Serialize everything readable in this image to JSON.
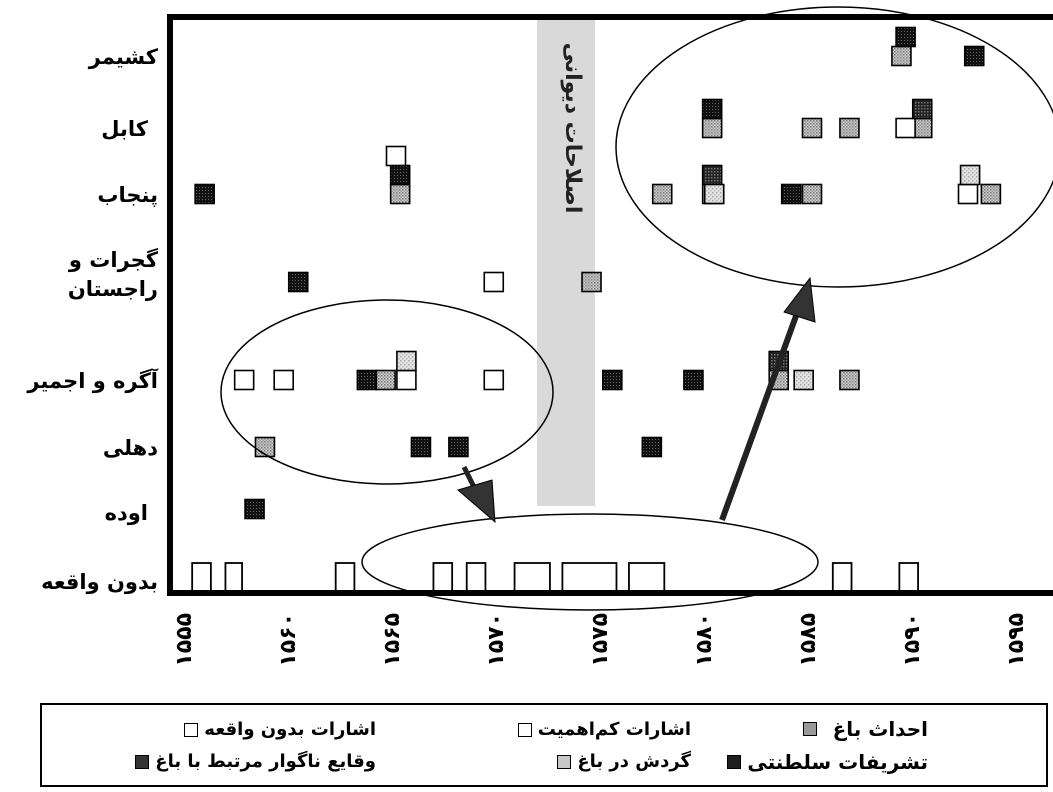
{
  "chart_data": {
    "type": "scatter",
    "categories": [
      "کشیمر",
      "کابل",
      "پنجاب",
      "گجرات و راجستان",
      "آگره و اجمیر",
      "دهلی",
      "اوده",
      "بدون واقعه"
    ],
    "category_lines": [
      [
        "کشیمر"
      ],
      [
        "کابل"
      ],
      [
        "پنجاب"
      ],
      [
        "گجرات و",
        "راجستان"
      ],
      [
        "آگره و اجمیر"
      ],
      [
        "دهلی"
      ],
      [
        "اوده"
      ],
      [
        "بدون واقعه"
      ]
    ],
    "x_ticks": [
      "۱۵۵۵",
      "۱۵۶۰",
      "۱۵۶۵",
      "۱۵۷۰",
      "۱۵۷۵",
      "۱۵۸۰",
      "۱۵۸۵",
      "۱۵۹۰",
      "۱۵۹۵"
    ],
    "xlim": [
      1555,
      1595
    ],
    "annotation": "اصلاحات دیوانی",
    "annotation_range": [
      1572,
      1574.3
    ],
    "colors": {
      "no_event": "#ffffff",
      "minor": "#ffffff",
      "garden_building": "#aaaaaa",
      "garden_walk": "#c8c8c8",
      "unpleasant": "#3a3a3a",
      "ceremonies": "#1e1e1e",
      "band": "#d9d9d9"
    },
    "series": [
      {
        "name": "احداث باغ",
        "key": "garden_building",
        "points": [
          {
            "x": 1565.2,
            "y": "پنجاب"
          },
          {
            "x": 1574.4,
            "y": "گجرات و راجستان"
          },
          {
            "x": 1577.8,
            "y": "پنجاب"
          },
          {
            "x": 1580.2,
            "y": "کابل"
          },
          {
            "x": 1580.2,
            "y": "پنجاب"
          },
          {
            "x": 1585,
            "y": "کابل"
          },
          {
            "x": 1585,
            "y": "پنجاب"
          },
          {
            "x": 1586.8,
            "y": "کابل"
          },
          {
            "x": 1590.3,
            "y": "کابل"
          },
          {
            "x": 1586.8,
            "y": "آگره و اجمیر"
          },
          {
            "x": 1589.3,
            "y": "کشیمر"
          },
          {
            "x": 1593.6,
            "y": "پنجاب"
          },
          {
            "x": 1583.4,
            "y": "آگره و اجمیر"
          },
          {
            "x": 1558.7,
            "y": "دهلی"
          },
          {
            "x": 1564.5,
            "y": "آگره و اجمیر"
          }
        ]
      },
      {
        "name": "تشریفات سلطنتی",
        "key": "ceremonies",
        "points": [
          {
            "x": 1555.8,
            "y": "پنجاب"
          },
          {
            "x": 1563.6,
            "y": "آگره و اجمیر"
          },
          {
            "x": 1580.2,
            "y": "کابل"
          },
          {
            "x": 1584,
            "y": "پنجاب"
          },
          {
            "x": 1589.5,
            "y": "کشیمر"
          },
          {
            "x": 1592.8,
            "y": "کشیمر"
          },
          {
            "x": 1579.3,
            "y": "آگره و اجمیر"
          },
          {
            "x": 1577.3,
            "y": "دهلی"
          },
          {
            "x": 1575.4,
            "y": "آگره و اجمیر"
          },
          {
            "x": 1565.2,
            "y": "پنجاب"
          },
          {
            "x": 1560.3,
            "y": "گجرات و راجستان"
          },
          {
            "x": 1558.2,
            "y": "اوده"
          },
          {
            "x": 1566.2,
            "y": "دهلی"
          },
          {
            "x": 1568,
            "y": "دهلی"
          }
        ]
      },
      {
        "name": "اشارات کم‌اهمیت",
        "key": "minor",
        "points": [
          {
            "x": 1557.7,
            "y": "آگره و اجمیر"
          },
          {
            "x": 1559.6,
            "y": "آگره و اجمیر"
          },
          {
            "x": 1565,
            "y": "پنجاب"
          },
          {
            "x": 1565.5,
            "y": "آگره و اجمیر"
          },
          {
            "x": 1569.7,
            "y": "گجرات و راجستان"
          },
          {
            "x": 1569.7,
            "y": "آگره و اجمیر"
          },
          {
            "x": 1589.5,
            "y": "کابل"
          },
          {
            "x": 1592.5,
            "y": "پنجاب"
          }
        ]
      },
      {
        "name": "وقایع ناگوار مرتبط با باغ",
        "key": "unpleasant",
        "points": [
          {
            "x": 1580.2,
            "y": "پنجاب"
          },
          {
            "x": 1590.3,
            "y": "کابل"
          },
          {
            "x": 1583.4,
            "y": "آگره و اجمیر"
          }
        ]
      },
      {
        "name": "گردش در باغ",
        "key": "garden_walk",
        "points": [
          {
            "x": 1592.6,
            "y": "پنجاب"
          },
          {
            "x": 1565.5,
            "y": "آگره و اجمیر"
          },
          {
            "x": 1584.6,
            "y": "آگره و اجمیر"
          },
          {
            "x": 1580.3,
            "y": "پنجاب"
          }
        ]
      },
      {
        "name": "اشارات بدون واقعه",
        "key": "no_event",
        "ranges": [
          [
            1555.2,
            1556.1
          ],
          [
            1556.8,
            1557.6
          ],
          [
            1562.1,
            1563
          ],
          [
            1566.8,
            1567.7
          ],
          [
            1568.4,
            1569.3
          ],
          [
            1570.7,
            1572.4
          ],
          [
            1573,
            1575.6
          ],
          [
            1576.2,
            1577.9
          ],
          [
            1586,
            1586.9
          ],
          [
            1589.2,
            1590.1
          ]
        ]
      }
    ],
    "ellipses": 3,
    "arrows": 2
  },
  "legend": [
    {
      "key": "no_event",
      "label": "اشارات بدون واقعه",
      "bold": false
    },
    {
      "key": "minor",
      "label": "اشارات کم‌اهمیت",
      "bold": false
    },
    {
      "key": "garden_building",
      "label": "احداث باغ",
      "bold": true
    },
    {
      "key": "unpleasant",
      "label": "وقایع ناگوار مرتبط با باغ",
      "bold": false
    },
    {
      "key": "garden_walk",
      "label": "گردش در باغ",
      "bold": false
    },
    {
      "key": "ceremonies",
      "label": "تشریفات سلطنتی",
      "bold": true
    }
  ]
}
